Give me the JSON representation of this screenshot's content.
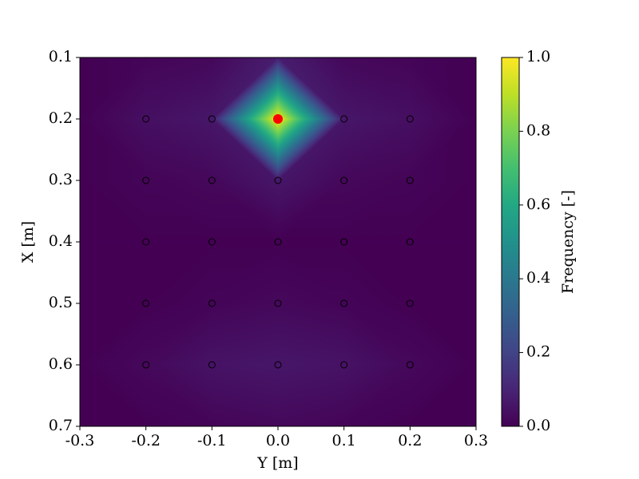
{
  "chart_data": {
    "type": "heatmap",
    "x_label": "Y [m]",
    "y_label": "X [m]",
    "colorbar_label": "Frequency [-]",
    "colormap": "viridis",
    "grid_x": [
      -0.3,
      -0.2,
      -0.1,
      0,
      0.1,
      0.2,
      0.3
    ],
    "grid_y": [
      0.1,
      0.2,
      0.3,
      0.4,
      0.5,
      0.6,
      0.7
    ],
    "z": [
      [
        0,
        0.01,
        0.02,
        0.08,
        0.02,
        0.01,
        0
      ],
      [
        0,
        0.04,
        0.06,
        1,
        0.06,
        0.04,
        0
      ],
      [
        0,
        0.01,
        0.02,
        0.06,
        0.02,
        0.01,
        0
      ],
      [
        0,
        0,
        0,
        0,
        0,
        0,
        0
      ],
      [
        0,
        0,
        0.01,
        0.02,
        0.01,
        0,
        0
      ],
      [
        0,
        0.02,
        0.05,
        0.06,
        0.05,
        0.02,
        0
      ],
      [
        0,
        0,
        0.01,
        0.02,
        0.01,
        0,
        0
      ]
    ],
    "measurement_points": {
      "color": "#000000",
      "x": [
        -0.2,
        -0.1,
        0,
        0.1,
        0.2,
        -0.2,
        -0.1,
        0,
        0.1,
        0.2,
        -0.2,
        -0.1,
        0,
        0.1,
        0.2,
        -0.2,
        -0.1,
        0,
        0.1,
        0.2,
        -0.2,
        -0.1,
        0,
        0.1,
        0.2
      ],
      "y": [
        0.2,
        0.2,
        0.2,
        0.2,
        0.2,
        0.3,
        0.3,
        0.3,
        0.3,
        0.3,
        0.4,
        0.4,
        0.4,
        0.4,
        0.4,
        0.5,
        0.5,
        0.5,
        0.5,
        0.5,
        0.6,
        0.6,
        0.6,
        0.6,
        0.6
      ]
    },
    "source_point": {
      "color": "#ff0000",
      "x": 0,
      "y": 0.2
    },
    "xlim": [
      -0.3,
      0.3
    ],
    "xticks": [
      -0.3,
      -0.2,
      -0.1,
      {
        "value": 0,
        "label": "0.0"
      },
      0.1,
      0.2,
      0.3
    ],
    "ylim": [
      0.1,
      0.7
    ],
    "y_inverted": true,
    "yticks": [
      0.1,
      0.2,
      0.3,
      0.4,
      0.5,
      0.6,
      0.7
    ],
    "clim": [
      0,
      1
    ],
    "cticks": [
      {
        "value": 0,
        "label": "0.0"
      },
      0.2,
      0.4,
      0.6,
      0.8,
      {
        "value": 1,
        "label": "1.0"
      }
    ]
  }
}
